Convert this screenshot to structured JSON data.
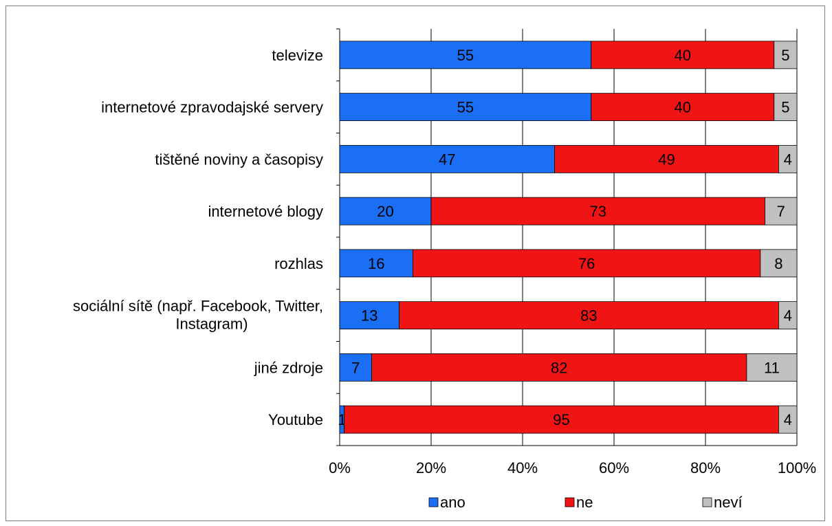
{
  "chart_data": {
    "type": "bar",
    "orientation": "horizontal",
    "stacked": "percent",
    "categories": [
      "televize",
      "internetové zpravodajské servery",
      "tištěné noviny a časopisy",
      "internetové blogy",
      "rozhlas",
      "sociální sítě (např. Facebook, Twitter, Instagram)",
      "jiné zdroje",
      "Youtube"
    ],
    "category_lines": [
      [
        "televize"
      ],
      [
        "internetové zpravodajské servery"
      ],
      [
        "tištěné noviny a časopisy"
      ],
      [
        "internetové blogy"
      ],
      [
        "rozhlas"
      ],
      [
        "sociální sítě (např. Facebook, Twitter,",
        "Instagram)"
      ],
      [
        "jiné zdroje"
      ],
      [
        "Youtube"
      ]
    ],
    "series": [
      {
        "name": "ano",
        "color": "#1a6ff5",
        "values": [
          55,
          55,
          47,
          20,
          16,
          13,
          7,
          1
        ]
      },
      {
        "name": "ne",
        "color": "#f01414",
        "values": [
          40,
          40,
          49,
          73,
          76,
          83,
          82,
          95
        ]
      },
      {
        "name": "neví",
        "color": "#c0c0c0",
        "values": [
          5,
          5,
          4,
          7,
          8,
          4,
          11,
          4
        ]
      }
    ],
    "x_ticks": [
      "0%",
      "20%",
      "40%",
      "60%",
      "80%",
      "100%"
    ],
    "xlim": [
      0,
      100
    ],
    "grid": true,
    "legend": "bottom"
  }
}
